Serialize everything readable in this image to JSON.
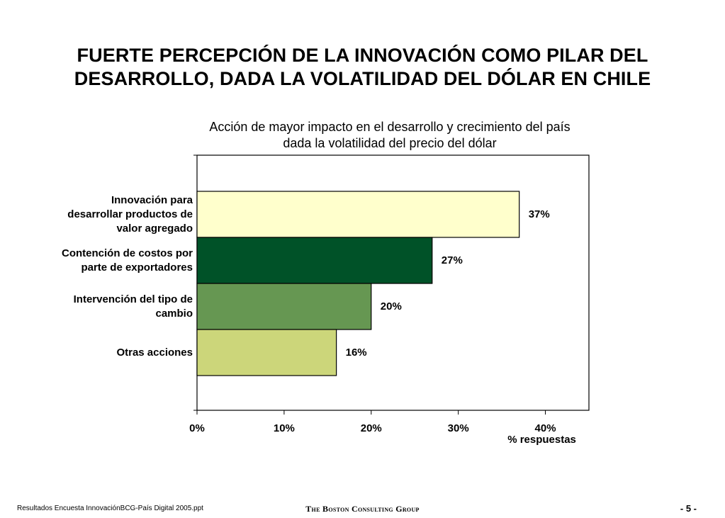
{
  "slide": {
    "title_line1": "FUERTE PERCEPCIÓN DE LA INNOVACIÓN COMO PILAR DEL",
    "title_line2": "DESARROLLO, DADA LA VOLATILIDAD DEL DÓLAR EN CHILE"
  },
  "chart_data": {
    "type": "bar",
    "orientation": "horizontal",
    "title_line1": "Acción de mayor impacto en el desarrollo y crecimiento del país",
    "title_line2": "dada la volatilidad del precio del dólar",
    "categories": [
      "Innovación para desarrollar productos de valor agregado",
      "Contención de costos por parte de exportadores",
      "Intervención del tipo de cambio",
      "Otras acciones"
    ],
    "category_lines": [
      [
        "Innovación para",
        "desarrollar productos de",
        "valor agregado"
      ],
      [
        "Contención de costos por",
        "parte de exportadores"
      ],
      [
        "Intervención del tipo de",
        "cambio"
      ],
      [
        "Otras acciones"
      ]
    ],
    "values": [
      37,
      27,
      20,
      16
    ],
    "data_labels": [
      "37%",
      "27%",
      "20%",
      "16%"
    ],
    "colors": [
      "#ffffcc",
      "#005228",
      "#669752",
      "#ccd67a"
    ],
    "xlim": [
      0,
      45
    ],
    "xticks": [
      0,
      10,
      20,
      30,
      40
    ],
    "xtick_labels": [
      "0%",
      "10%",
      "20%",
      "30%",
      "40%"
    ],
    "xlabel": "% respuestas",
    "grid": false
  },
  "footer": {
    "source": "Resultados Encuesta InnovaciónBCG-País Digital 2005.ppt",
    "company": "The Boston Consulting Group",
    "page": "- 5 -"
  }
}
